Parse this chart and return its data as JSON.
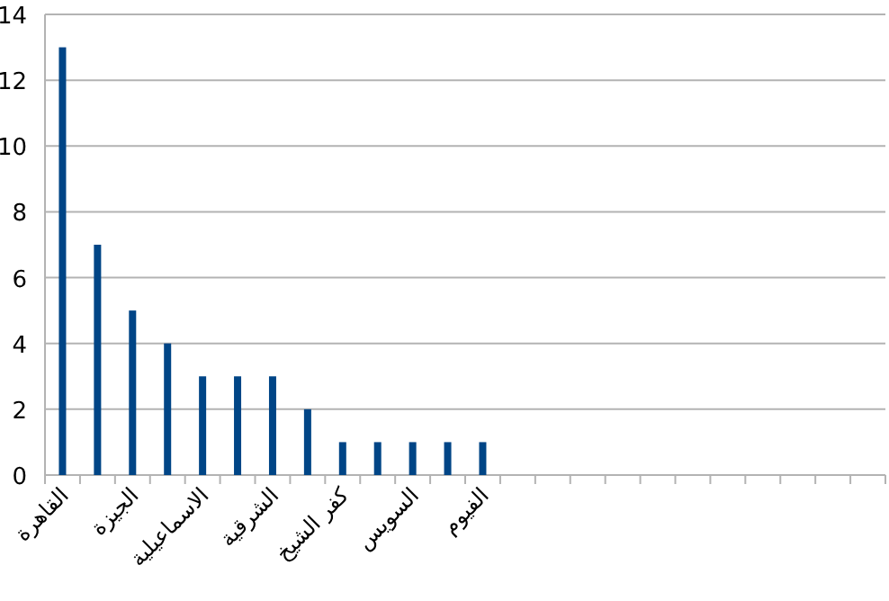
{
  "chart_data": {
    "type": "bar",
    "categories": [
      "القاهرة",
      null,
      "الجيزة",
      null,
      "الاسماعيلية",
      null,
      "الشرقية",
      null,
      "كفر الشيخ",
      null,
      "السويس",
      null,
      "الفيوم",
      null,
      null,
      null,
      null,
      null,
      null,
      null,
      null,
      null,
      null,
      null
    ],
    "values": [
      13,
      7,
      5,
      4,
      3,
      3,
      3,
      2,
      1,
      1,
      1,
      1,
      1,
      null,
      null,
      null,
      null,
      null,
      null,
      null,
      null,
      null,
      null,
      null
    ],
    "color": "#004586",
    "ylim": [
      0,
      14
    ],
    "yticks": [
      0,
      2,
      4,
      6,
      8,
      10,
      12,
      14
    ],
    "grid": "y"
  }
}
